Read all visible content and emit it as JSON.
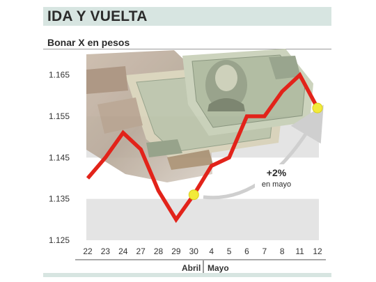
{
  "header": {
    "title": "IDA Y VUELTA"
  },
  "chart_data": {
    "type": "line",
    "title": "Bonar X en pesos",
    "xlabel": "",
    "ylabel": "",
    "categories": [
      "22",
      "23",
      "24",
      "27",
      "28",
      "29",
      "30",
      "4",
      "5",
      "6",
      "7",
      "8",
      "11",
      "12"
    ],
    "series": [
      {
        "values": [
          1.14,
          1.145,
          1.151,
          1.147,
          1.137,
          1.13,
          1.136,
          1.143,
          1.145,
          1.155,
          1.155,
          1.161,
          1.165,
          1.157
        ]
      }
    ],
    "ylim": [
      1.125,
      1.17
    ],
    "yticks": [
      1.125,
      1.135,
      1.145,
      1.155,
      1.165
    ],
    "ytick_labels": [
      "1.125",
      "1.135",
      "1.145",
      "1.155",
      "1.165"
    ],
    "grid": false,
    "month_labels": [
      "Abril",
      "Mayo"
    ],
    "annotation": {
      "main": "+2%",
      "sub": "en mayo"
    },
    "line_color": "#e2231a",
    "highlight_color": "#f2ea3b",
    "band_color": "#e4e4e4"
  }
}
